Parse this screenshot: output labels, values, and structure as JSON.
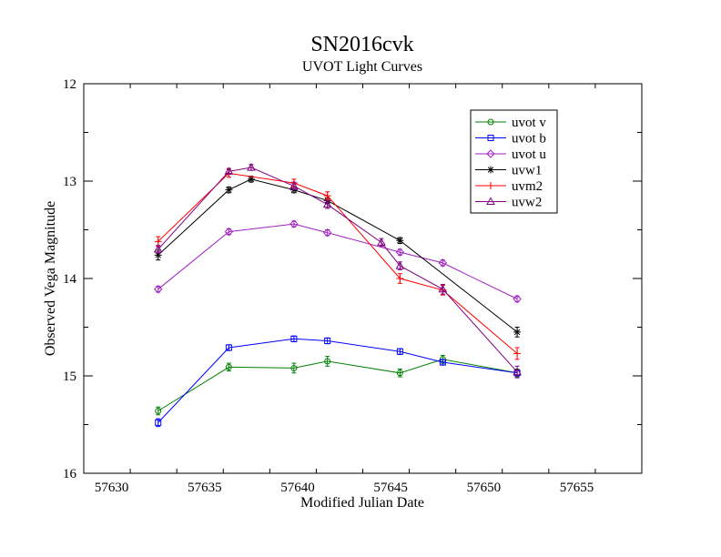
{
  "chart_data": {
    "type": "line",
    "title": "SN2016cvk",
    "subtitle": "UVOT Light Curves",
    "xlabel": "Modified Julian Date",
    "ylabel": "Observed Vega Magnitude",
    "xlim": [
      57628.5,
      57658.5
    ],
    "ylim": [
      12,
      16
    ],
    "y_inverted": true,
    "x_major_ticks": [
      57630,
      57635,
      57640,
      57645,
      57650,
      57655
    ],
    "x_tick_labels": [
      "57630",
      "57635",
      "57640",
      "57645",
      "57650",
      "57655"
    ],
    "y_major_ticks": [
      12,
      13,
      14,
      15,
      16
    ],
    "y_tick_labels": [
      "12",
      "13",
      "14",
      "15",
      "16"
    ],
    "grid": false,
    "legend_position": "top-right",
    "series": [
      {
        "name": "uvot v",
        "color": "#008000",
        "marker": "circle",
        "x": [
          57632.5,
          57636.3,
          57639.8,
          57641.6,
          57645.5,
          57647.8,
          57651.8
        ],
        "y": [
          15.36,
          14.91,
          14.92,
          14.85,
          14.97,
          14.83,
          14.97
        ],
        "err": [
          0.04,
          0.04,
          0.05,
          0.05,
          0.04,
          0.04,
          0.04
        ]
      },
      {
        "name": "uvot b",
        "color": "#0000ff",
        "marker": "square",
        "x": [
          57632.5,
          57636.3,
          57639.8,
          57641.6,
          57645.5,
          57647.8,
          57651.8
        ],
        "y": [
          15.48,
          14.71,
          14.62,
          14.64,
          14.75,
          14.86,
          14.97
        ],
        "err": [
          0.04,
          0.03,
          0.03,
          0.03,
          0.03,
          0.03,
          0.03
        ]
      },
      {
        "name": "uvot u",
        "color": "#a020c0",
        "marker": "diamond",
        "x": [
          57632.5,
          57636.3,
          57639.8,
          57641.6,
          57645.5,
          57647.8,
          57651.8
        ],
        "y": [
          14.11,
          13.52,
          13.44,
          13.53,
          13.73,
          13.84,
          14.21
        ],
        "err": [
          0.03,
          0.03,
          0.03,
          0.03,
          0.03,
          0.03,
          0.03
        ]
      },
      {
        "name": "uvw1",
        "color": "#000000",
        "marker": "asterisk",
        "x": [
          57632.5,
          57636.3,
          57637.5,
          57639.8,
          57641.6,
          57645.5,
          57651.8
        ],
        "y": [
          13.76,
          13.09,
          12.98,
          13.09,
          13.2,
          13.61,
          14.55
        ],
        "err": [
          0.05,
          0.03,
          0.03,
          0.03,
          0.03,
          0.03,
          0.05
        ]
      },
      {
        "name": "uvm2",
        "color": "#ff0000",
        "marker": "plus",
        "x": [
          57632.5,
          57636.3,
          57639.8,
          57641.6,
          57645.5,
          57647.8,
          57651.8
        ],
        "y": [
          13.62,
          12.92,
          13.02,
          13.15,
          14.0,
          14.12,
          14.77
        ],
        "err": [
          0.05,
          0.04,
          0.04,
          0.04,
          0.05,
          0.05,
          0.06
        ]
      },
      {
        "name": "uvw2",
        "color": "#800080",
        "marker": "triangle",
        "x": [
          57632.5,
          57636.3,
          57637.5,
          57639.8,
          57641.6,
          57644.5,
          57645.5,
          57647.8,
          57651.8
        ],
        "y": [
          13.7,
          12.9,
          12.86,
          13.05,
          13.24,
          13.63,
          13.87,
          14.11,
          14.96
        ],
        "err": [
          0.04,
          0.03,
          0.03,
          0.04,
          0.04,
          0.04,
          0.04,
          0.05,
          0.06
        ]
      }
    ]
  }
}
